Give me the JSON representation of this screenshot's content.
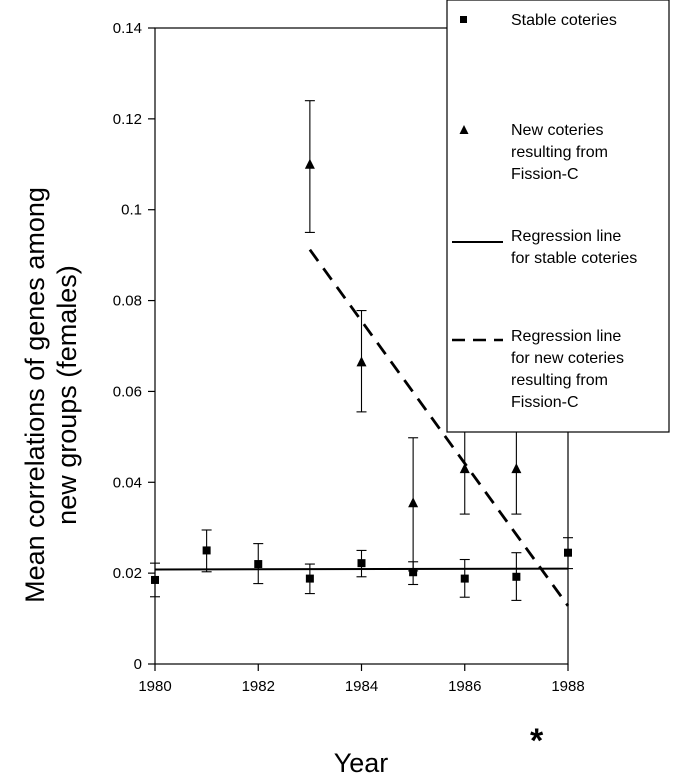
{
  "chart_data": {
    "type": "scatter",
    "xlabel": "Year",
    "ylabel_lines": [
      "Mean correlations of genes among",
      "new groups (females)"
    ],
    "xlim": [
      1980,
      1988
    ],
    "ylim": [
      0,
      0.14
    ],
    "xticks": [
      1980,
      1982,
      1984,
      1986,
      1988
    ],
    "yticks": [
      "0",
      "0.02",
      "0.04",
      "0.06",
      "0.08",
      "0.1",
      "0.12",
      "0.14"
    ],
    "grid": false,
    "legend_position": "top-right",
    "annotation": "*",
    "series": [
      {
        "name": "Stable coteries",
        "marker": "square",
        "x": [
          1980,
          1981,
          1982,
          1983,
          1984,
          1985,
          1986,
          1987,
          1988
        ],
        "y": [
          0.0185,
          0.025,
          0.022,
          0.0188,
          0.0222,
          0.0202,
          0.0188,
          0.0192,
          0.0245
        ],
        "err_low": [
          0.0148,
          0.0203,
          0.0177,
          0.0155,
          0.0192,
          0.0175,
          0.0147,
          0.014,
          0.021
        ],
        "err_high": [
          0.0222,
          0.0295,
          0.0265,
          0.022,
          0.025,
          0.0225,
          0.023,
          0.0245,
          0.0278
        ]
      },
      {
        "name_lines": [
          "New coteries",
          "resulting from",
          "Fission-C"
        ],
        "marker": "triangle",
        "x": [
          1983,
          1984,
          1985,
          1986,
          1987
        ],
        "y": [
          0.11,
          0.0665,
          0.0355,
          0.043,
          0.043
        ],
        "err_low": [
          0.095,
          0.0555,
          0.0205,
          0.033,
          0.033
        ],
        "err_high": [
          0.124,
          0.0778,
          0.0498,
          0.0528,
          0.0528
        ]
      }
    ],
    "regression_lines": [
      {
        "name_lines": [
          "Regression line",
          "for stable coteries"
        ],
        "style": "solid",
        "x": [
          1980,
          1988
        ],
        "y": [
          0.0208,
          0.021
        ]
      },
      {
        "name_lines": [
          "Regression line",
          "for new coteries",
          "resulting from",
          "Fission-C"
        ],
        "style": "dashed",
        "x": [
          1983,
          1988
        ],
        "y": [
          0.0912,
          0.0128
        ]
      }
    ]
  }
}
